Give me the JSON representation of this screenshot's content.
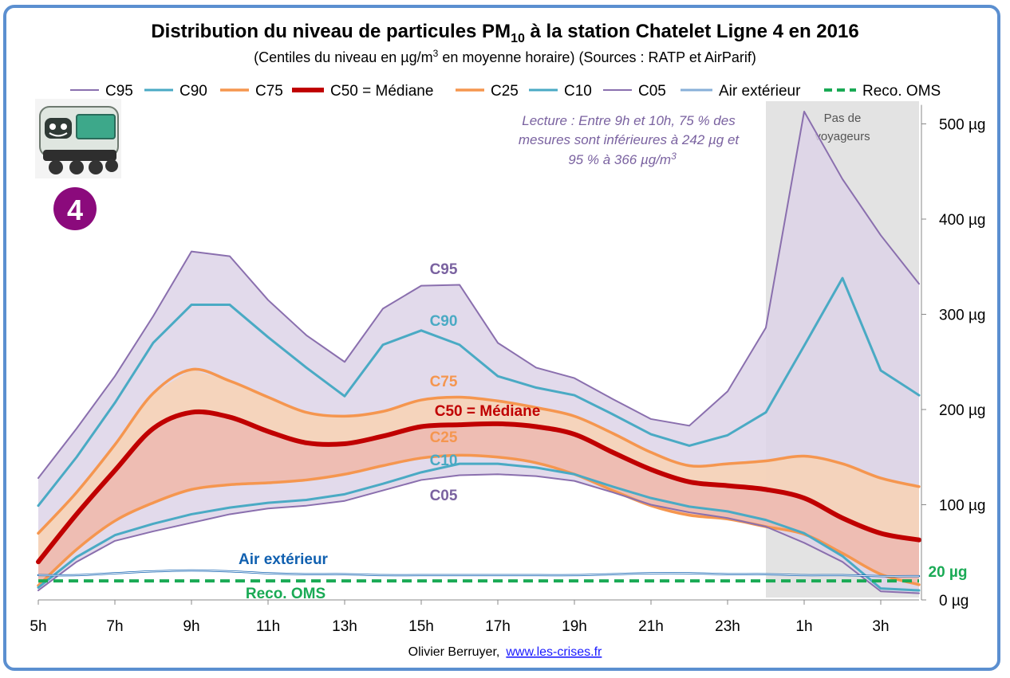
{
  "chart_data": {
    "type": "line",
    "title": "Distribution du niveau de particules PM",
    "title_sub": "10",
    "title_rest": " à la station Chatelet Ligne 4 en 2016",
    "subtitle": "(Centiles du niveau en µg/m",
    "subtitle_sup": "3",
    "subtitle_rest": " en moyenne horaire) (Sources : RATP et AirParif)",
    "x": [
      "5h",
      "6h",
      "7h",
      "8h",
      "9h",
      "10h",
      "11h",
      "12h",
      "13h",
      "14h",
      "15h",
      "16h",
      "17h",
      "18h",
      "19h",
      "20h",
      "21h",
      "22h",
      "23h",
      "0h",
      "1h",
      "2h",
      "3h",
      "4h"
    ],
    "x_tick_labels": [
      "5h",
      "7h",
      "9h",
      "11h",
      "13h",
      "15h",
      "17h",
      "19h",
      "21h",
      "23h",
      "1h",
      "3h"
    ],
    "y_tick_labels": [
      "0 µg",
      "100 µg",
      "200 µg",
      "300 µg",
      "400 µg",
      "500 µg"
    ],
    "ylim": [
      0,
      520
    ],
    "y_axis_position": "right",
    "series": [
      {
        "name": "C95",
        "key": "c95",
        "color": "#8a6fae",
        "values": [
          128,
          180,
          235,
          298,
          366,
          361,
          315,
          278,
          250,
          306,
          330,
          331,
          270,
          244,
          233,
          211,
          190,
          183,
          219,
          286,
          513,
          442,
          383,
          332
        ]
      },
      {
        "name": "C90",
        "key": "c90",
        "color": "#4aaac4",
        "values": [
          99,
          150,
          207,
          270,
          310,
          310,
          276,
          244,
          214,
          268,
          283,
          268,
          235,
          223,
          215,
          195,
          174,
          162,
          173,
          197,
          267,
          338,
          241,
          215
        ]
      },
      {
        "name": "C75",
        "key": "c75",
        "color": "#f5964f",
        "values": [
          70,
          113,
          163,
          217,
          242,
          230,
          213,
          197,
          193,
          198,
          210,
          213,
          209,
          202,
          193,
          175,
          155,
          141,
          143,
          146,
          151,
          143,
          128,
          119
        ]
      },
      {
        "name": "C50 = Médiane",
        "key": "c50",
        "color": "#c00000",
        "values": [
          40,
          90,
          136,
          180,
          197,
          192,
          177,
          165,
          164,
          172,
          182,
          184,
          185,
          182,
          174,
          155,
          137,
          124,
          120,
          116,
          107,
          86,
          70,
          63
        ]
      },
      {
        "name": "C25",
        "key": "c25",
        "color": "#f5964f",
        "values": [
          15,
          53,
          83,
          102,
          116,
          121,
          123,
          126,
          132,
          141,
          149,
          152,
          150,
          144,
          132,
          115,
          99,
          89,
          85,
          77,
          69,
          49,
          27,
          16
        ]
      },
      {
        "name": "C10",
        "key": "c10",
        "color": "#4aaac4",
        "values": [
          13,
          45,
          68,
          80,
          90,
          97,
          102,
          105,
          111,
          122,
          134,
          143,
          143,
          139,
          132,
          119,
          107,
          98,
          93,
          84,
          70,
          46,
          12,
          10
        ]
      },
      {
        "name": "C05",
        "key": "c05",
        "color": "#8a6fae",
        "values": [
          10,
          40,
          62,
          72,
          81,
          90,
          96,
          99,
          104,
          115,
          126,
          131,
          132,
          130,
          125,
          113,
          100,
          92,
          86,
          77,
          60,
          40,
          9,
          7
        ]
      },
      {
        "name": "Air extérieur",
        "key": "ext",
        "color": "#1060b0",
        "values": [
          26,
          26,
          28,
          30,
          31,
          30,
          28,
          27,
          27,
          26,
          26,
          26,
          26,
          26,
          26,
          27,
          28,
          28,
          27,
          27,
          26,
          26,
          25,
          25
        ]
      },
      {
        "name": "Reco. OMS",
        "key": "oms",
        "color": "#1aaa55",
        "values": [
          20,
          20,
          20,
          20,
          20,
          20,
          20,
          20,
          20,
          20,
          20,
          20,
          20,
          20,
          20,
          20,
          20,
          20,
          20,
          20,
          20,
          20,
          20,
          20
        ]
      }
    ],
    "series_labels": {
      "c95": "C95",
      "c90": "C90",
      "c75": "C75",
      "c50": "C50 = Médiane",
      "c25": "C25",
      "c10": "C10",
      "c05": "C05",
      "ext": "Air extérieur",
      "oms": "Reco. OMS",
      "oms_value": "20 µg"
    },
    "shaded_region": {
      "from": "0h",
      "to": "4h",
      "label_line1": "Pas de",
      "label_line2": "voyageurs",
      "color": "#d9d9d9"
    },
    "annotation": [
      "Lecture :  Entre 9h et 10h, 75 % des",
      "mesures sont inférieures à 242 µg et",
      "95 % à 366 µg/m",
      "3"
    ],
    "band_colors": {
      "outer": "#ddd3e8",
      "middle": "#f8d2b4",
      "inner": "#ecb8b2"
    },
    "grid": false,
    "legend_position": "top"
  },
  "logo": {
    "badge": "4",
    "badge_color": "#8b0a7c"
  },
  "credit": {
    "author": "Olivier Berruyer,",
    "link": "www.les-crises.fr"
  },
  "colors": {
    "frame": "#5b8fd0"
  }
}
